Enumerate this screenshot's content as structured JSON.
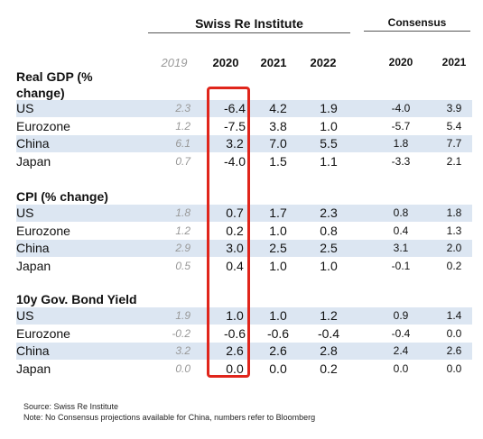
{
  "header": {
    "group_sri": "Swiss Re Institute",
    "group_consensus": "Consensus",
    "years_sri": [
      "2019",
      "2020",
      "2021",
      "2022"
    ],
    "years_consensus": [
      "2020",
      "2021"
    ]
  },
  "sections": [
    {
      "title": "Real GDP (% change)",
      "rows": [
        {
          "label": "US",
          "y2019": "2.3",
          "y2020": "-6.4",
          "y2021": "4.2",
          "y2022": "1.9",
          "c2020": "-4.0",
          "c2021": "3.9"
        },
        {
          "label": "Eurozone",
          "y2019": "1.2",
          "y2020": "-7.5",
          "y2021": "3.8",
          "y2022": "1.0",
          "c2020": "-5.7",
          "c2021": "5.4"
        },
        {
          "label": "China",
          "y2019": "6.1",
          "y2020": "3.2",
          "y2021": "7.0",
          "y2022": "5.5",
          "c2020": "1.8",
          "c2021": "7.7"
        },
        {
          "label": "Japan",
          "y2019": "0.7",
          "y2020": "-4.0",
          "y2021": "1.5",
          "y2022": "1.1",
          "c2020": "-3.3",
          "c2021": "2.1"
        }
      ]
    },
    {
      "title": "CPI (% change)",
      "rows": [
        {
          "label": "US",
          "y2019": "1.8",
          "y2020": "0.7",
          "y2021": "1.7",
          "y2022": "2.3",
          "c2020": "0.8",
          "c2021": "1.8"
        },
        {
          "label": "Eurozone",
          "y2019": "1.2",
          "y2020": "0.2",
          "y2021": "1.0",
          "y2022": "0.8",
          "c2020": "0.4",
          "c2021": "1.3"
        },
        {
          "label": "China",
          "y2019": "2.9",
          "y2020": "3.0",
          "y2021": "2.5",
          "y2022": "2.5",
          "c2020": "3.1",
          "c2021": "2.0"
        },
        {
          "label": "Japan",
          "y2019": "0.5",
          "y2020": "0.4",
          "y2021": "1.0",
          "y2022": "1.0",
          "c2020": "-0.1",
          "c2021": "0.2"
        }
      ]
    },
    {
      "title": "10y Gov. Bond Yield (%)",
      "rows": [
        {
          "label": "US",
          "y2019": "1.9",
          "y2020": "1.0",
          "y2021": "1.0",
          "y2022": "1.2",
          "c2020": "0.9",
          "c2021": "1.4"
        },
        {
          "label": "Eurozone",
          "y2019": "-0.2",
          "y2020": "-0.6",
          "y2021": "-0.6",
          "y2022": "-0.4",
          "c2020": "-0.4",
          "c2021": "0.0"
        },
        {
          "label": "China",
          "y2019": "3.2",
          "y2020": "2.6",
          "y2021": "2.6",
          "y2022": "2.8",
          "c2020": "2.4",
          "c2021": "2.6"
        },
        {
          "label": "Japan",
          "y2019": "0.0",
          "y2020": "0.0",
          "y2021": "0.0",
          "y2022": "0.2",
          "c2020": "0.0",
          "c2021": "0.0"
        }
      ]
    }
  ],
  "footer": {
    "source": "Source: Swiss Re Institute",
    "note": "Note:  No Consensus projections available for China, numbers refer to Bloomberg"
  },
  "colors": {
    "shade": "#dce6f2",
    "highlight": "#e0251b"
  }
}
